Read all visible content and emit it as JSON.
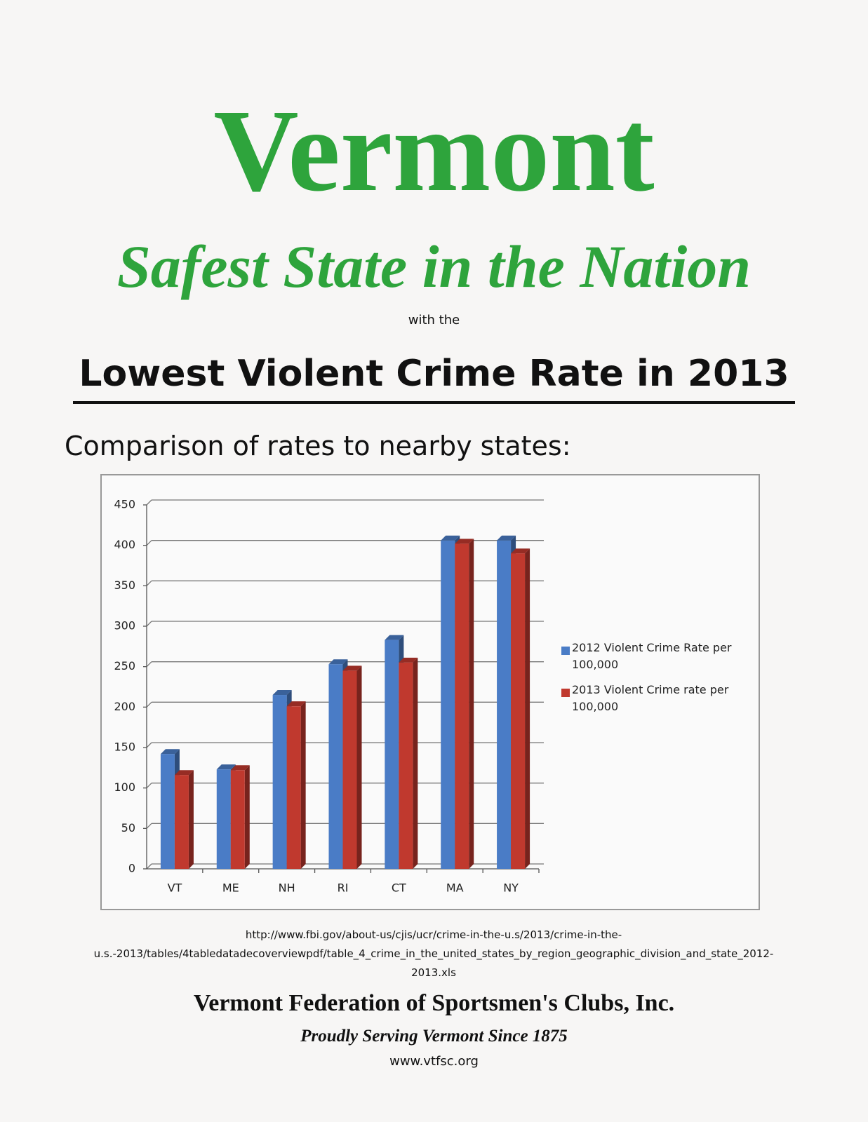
{
  "header": {
    "title": "Vermont",
    "subtitle": "Safest State in the Nation",
    "connector": "with the",
    "headline": "Lowest Violent Crime Rate in 2013",
    "intro": "Comparison of rates to nearby states:"
  },
  "chart_data": {
    "type": "bar",
    "categories": [
      "VT",
      "ME",
      "NH",
      "RI",
      "CT",
      "MA",
      "NY"
    ],
    "series": [
      {
        "name": "2012 Violent Crime Rate per 100,000",
        "color": "#4a7cc6",
        "values": [
          142,
          123,
          215,
          253,
          283,
          406,
          406
        ]
      },
      {
        "name": "2013 Violent Crime rate per 100,000",
        "color": "#c0392e",
        "values": [
          116,
          122,
          201,
          245,
          255,
          402,
          390
        ]
      }
    ],
    "ylim": [
      0,
      450
    ],
    "yticks": [
      0,
      50,
      100,
      150,
      200,
      250,
      300,
      350,
      400,
      450
    ],
    "grid": true,
    "legend": "right"
  },
  "source": "http://www.fbi.gov/about-us/cjis/ucr/crime-in-the-u.s/2013/crime-in-the-u.s.-2013/tables/4tabledatadecoverviewpdf/table_4_crime_in_the_united_states_by_region_geographic_division_and_state_2012-2013.xls",
  "footer": {
    "organization": "Vermont Federation of Sportsmen's Clubs, Inc.",
    "tagline": "Proudly Serving Vermont Since 1875",
    "website": "www.vtfsc.org"
  }
}
